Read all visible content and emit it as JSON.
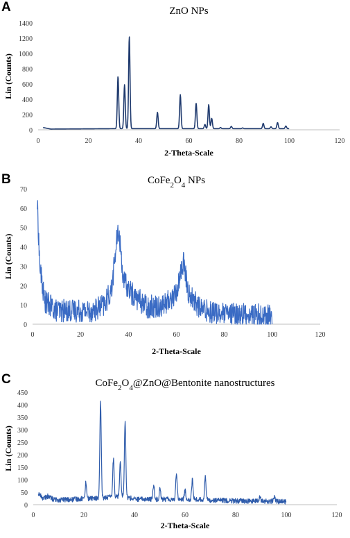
{
  "chart_data": [
    {
      "panel": "A",
      "type": "line",
      "title": "ZnO NPs",
      "title_parts": [
        {
          "t": "ZnO NPs",
          "sub": false
        }
      ],
      "xlabel": "2-Theta-Scale",
      "ylabel": "Lin (Counts)",
      "xlim": [
        0,
        120
      ],
      "ylim": [
        0,
        1400
      ],
      "xticks": [
        0,
        20,
        40,
        60,
        80,
        100,
        120
      ],
      "yticks": [
        0,
        200,
        400,
        600,
        800,
        1000,
        1200,
        1400
      ],
      "grid": false,
      "color": "#1f3a6e",
      "baseline_trend": [
        [
          2,
          30
        ],
        [
          5,
          10
        ],
        [
          30,
          15
        ],
        [
          100,
          15
        ]
      ],
      "peaks": [
        {
          "x": 31.8,
          "y": 700
        },
        {
          "x": 34.4,
          "y": 590
        },
        {
          "x": 36.3,
          "y": 1220
        },
        {
          "x": 47.5,
          "y": 230
        },
        {
          "x": 56.6,
          "y": 460
        },
        {
          "x": 62.9,
          "y": 350
        },
        {
          "x": 66.4,
          "y": 70
        },
        {
          "x": 67.9,
          "y": 330
        },
        {
          "x": 69.1,
          "y": 150
        },
        {
          "x": 72.6,
          "y": 30
        },
        {
          "x": 76.9,
          "y": 45
        },
        {
          "x": 81.4,
          "y": 25
        },
        {
          "x": 89.6,
          "y": 85
        },
        {
          "x": 92.7,
          "y": 40
        },
        {
          "x": 95.3,
          "y": 95
        },
        {
          "x": 98.6,
          "y": 50
        }
      ],
      "noise": 0,
      "x_end": 100
    },
    {
      "panel": "B",
      "type": "line",
      "title": "CoFe2O4 NPs",
      "title_parts": [
        {
          "t": "CoFe",
          "sub": false
        },
        {
          "t": "2",
          "sub": true
        },
        {
          "t": "O",
          "sub": false
        },
        {
          "t": "4",
          "sub": true
        },
        {
          "t": " NPs",
          "sub": false
        }
      ],
      "xlabel": "2-Theta-Scale",
      "ylabel": "Lin (Counts)",
      "xlim": [
        0,
        120
      ],
      "ylim": [
        0,
        70
      ],
      "xticks": [
        0,
        20,
        40,
        60,
        80,
        100,
        120
      ],
      "yticks": [
        0,
        10,
        20,
        30,
        40,
        50,
        60,
        70
      ],
      "grid": false,
      "color": "#3a6bc4",
      "baseline_trend": [
        [
          2,
          62
        ],
        [
          3,
          30
        ],
        [
          5,
          12
        ],
        [
          10,
          7
        ],
        [
          25,
          7
        ],
        [
          30,
          10
        ],
        [
          33,
          18
        ],
        [
          35,
          42
        ],
        [
          36,
          48
        ],
        [
          38,
          22
        ],
        [
          42,
          15
        ],
        [
          48,
          9
        ],
        [
          55,
          10
        ],
        [
          60,
          16
        ],
        [
          62,
          28
        ],
        [
          63,
          32
        ],
        [
          65,
          16
        ],
        [
          70,
          8
        ],
        [
          80,
          5
        ],
        [
          90,
          5
        ],
        [
          100,
          4
        ]
      ],
      "peaks": [],
      "noise": 6,
      "x_end": 100
    },
    {
      "panel": "C",
      "type": "line",
      "title": "CoFe2O4@ZnO@Bentonite nanostructures",
      "title_parts": [
        {
          "t": "CoFe",
          "sub": false
        },
        {
          "t": "2",
          "sub": true
        },
        {
          "t": "O",
          "sub": false
        },
        {
          "t": "4",
          "sub": true
        },
        {
          "t": "@ZnO@Bentonite nanostructures",
          "sub": false
        }
      ],
      "xlabel": "2-Theta-Scale",
      "ylabel": "Lin (Counts)",
      "xlim": [
        0,
        120
      ],
      "ylim": [
        0,
        450
      ],
      "xticks": [
        0,
        20,
        40,
        60,
        80,
        100,
        120
      ],
      "yticks": [
        0,
        50,
        100,
        150,
        200,
        250,
        300,
        350,
        400,
        450
      ],
      "grid": false,
      "color": "#2f5cab",
      "baseline_trend": [
        [
          2,
          45
        ],
        [
          4,
          25
        ],
        [
          6,
          35
        ],
        [
          8,
          20
        ],
        [
          15,
          20
        ],
        [
          20,
          25
        ],
        [
          25,
          25
        ],
        [
          35,
          35
        ],
        [
          40,
          22
        ],
        [
          60,
          22
        ],
        [
          80,
          15
        ],
        [
          100,
          12
        ]
      ],
      "peaks": [
        {
          "x": 20.8,
          "y": 90
        },
        {
          "x": 26.6,
          "y": 405
        },
        {
          "x": 31.7,
          "y": 185
        },
        {
          "x": 34.4,
          "y": 175
        },
        {
          "x": 36.3,
          "y": 335
        },
        {
          "x": 47.6,
          "y": 80
        },
        {
          "x": 50.1,
          "y": 70
        },
        {
          "x": 56.6,
          "y": 130
        },
        {
          "x": 60.0,
          "y": 55
        },
        {
          "x": 62.9,
          "y": 100
        },
        {
          "x": 68.0,
          "y": 115
        },
        {
          "x": 89.6,
          "y": 35
        },
        {
          "x": 95.3,
          "y": 35
        }
      ],
      "noise": 10,
      "x_end": 100
    }
  ]
}
